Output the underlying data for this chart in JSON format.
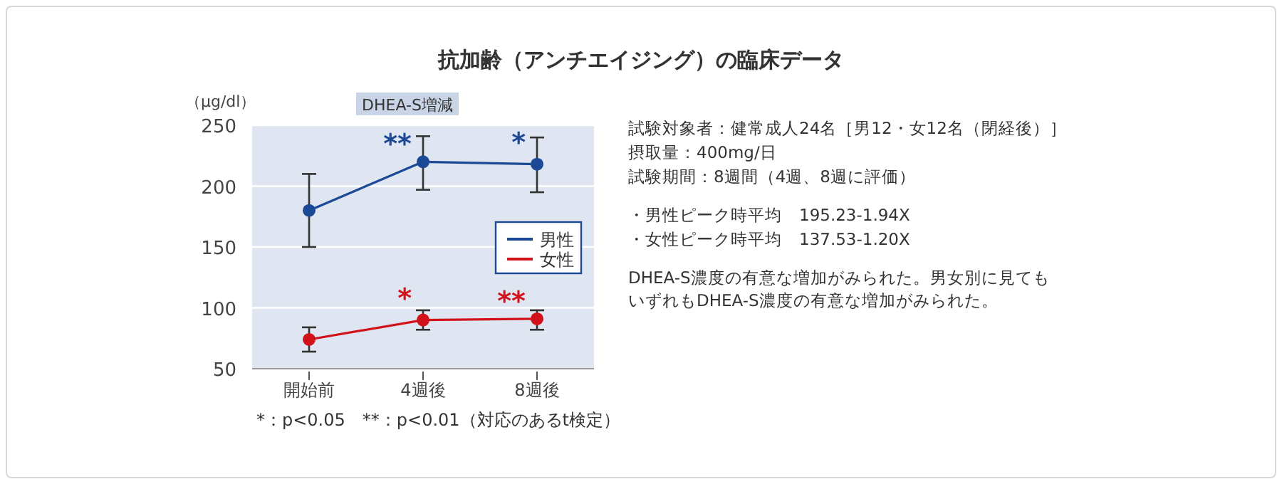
{
  "chart_data": {
    "type": "line",
    "title": "抗加齢（アンチエイジング）の臨床データ",
    "subtitle": "DHEA-S増減",
    "ylabel": "（μg/dl）",
    "categories": [
      "開始前",
      "4週後",
      "8週後"
    ],
    "series": [
      {
        "name": "男性",
        "color": "#1b4996",
        "values": [
          180,
          220,
          218
        ],
        "errors": [
          [
            150,
            210
          ],
          [
            197,
            241
          ],
          [
            195,
            240
          ]
        ]
      },
      {
        "name": "女性",
        "color": "#d2121b",
        "values": [
          74,
          90,
          91
        ],
        "errors": [
          [
            64,
            84
          ],
          [
            82,
            98
          ],
          [
            82,
            98
          ]
        ]
      }
    ],
    "ylim": [
      50,
      250
    ],
    "yticks": [
      50,
      100,
      150,
      200,
      250
    ],
    "grid": "y",
    "legend": "right",
    "marker": "circle",
    "line_style": "solid",
    "annotations": [
      {
        "text": "**",
        "x": "4週後",
        "y": 220
      },
      {
        "text": "*",
        "x": "8週後",
        "y": 218
      },
      {
        "text": "**",
        "x": "8週後",
        "y": 91
      },
      {
        "text": "*",
        "x": "4週後",
        "y": 90
      },
      "*：p<0.05　**：p<0.01（対応のあるt検定）",
      "試験対象者：健常成人24名［男12・女12名（閉経後）］",
      "摂取量：400mg/日",
      "試験期間：8週間（4週、8週に評価）",
      "・男性ピーク時平均　195.23-1.94X",
      "・女性ピーク時平均　137.53-1.20X",
      "DHEA-S濃度の有意な増加がみられた。男女別に見てもいずれもDHEA-S濃度の有意な増加がみられた。"
    ]
  }
}
